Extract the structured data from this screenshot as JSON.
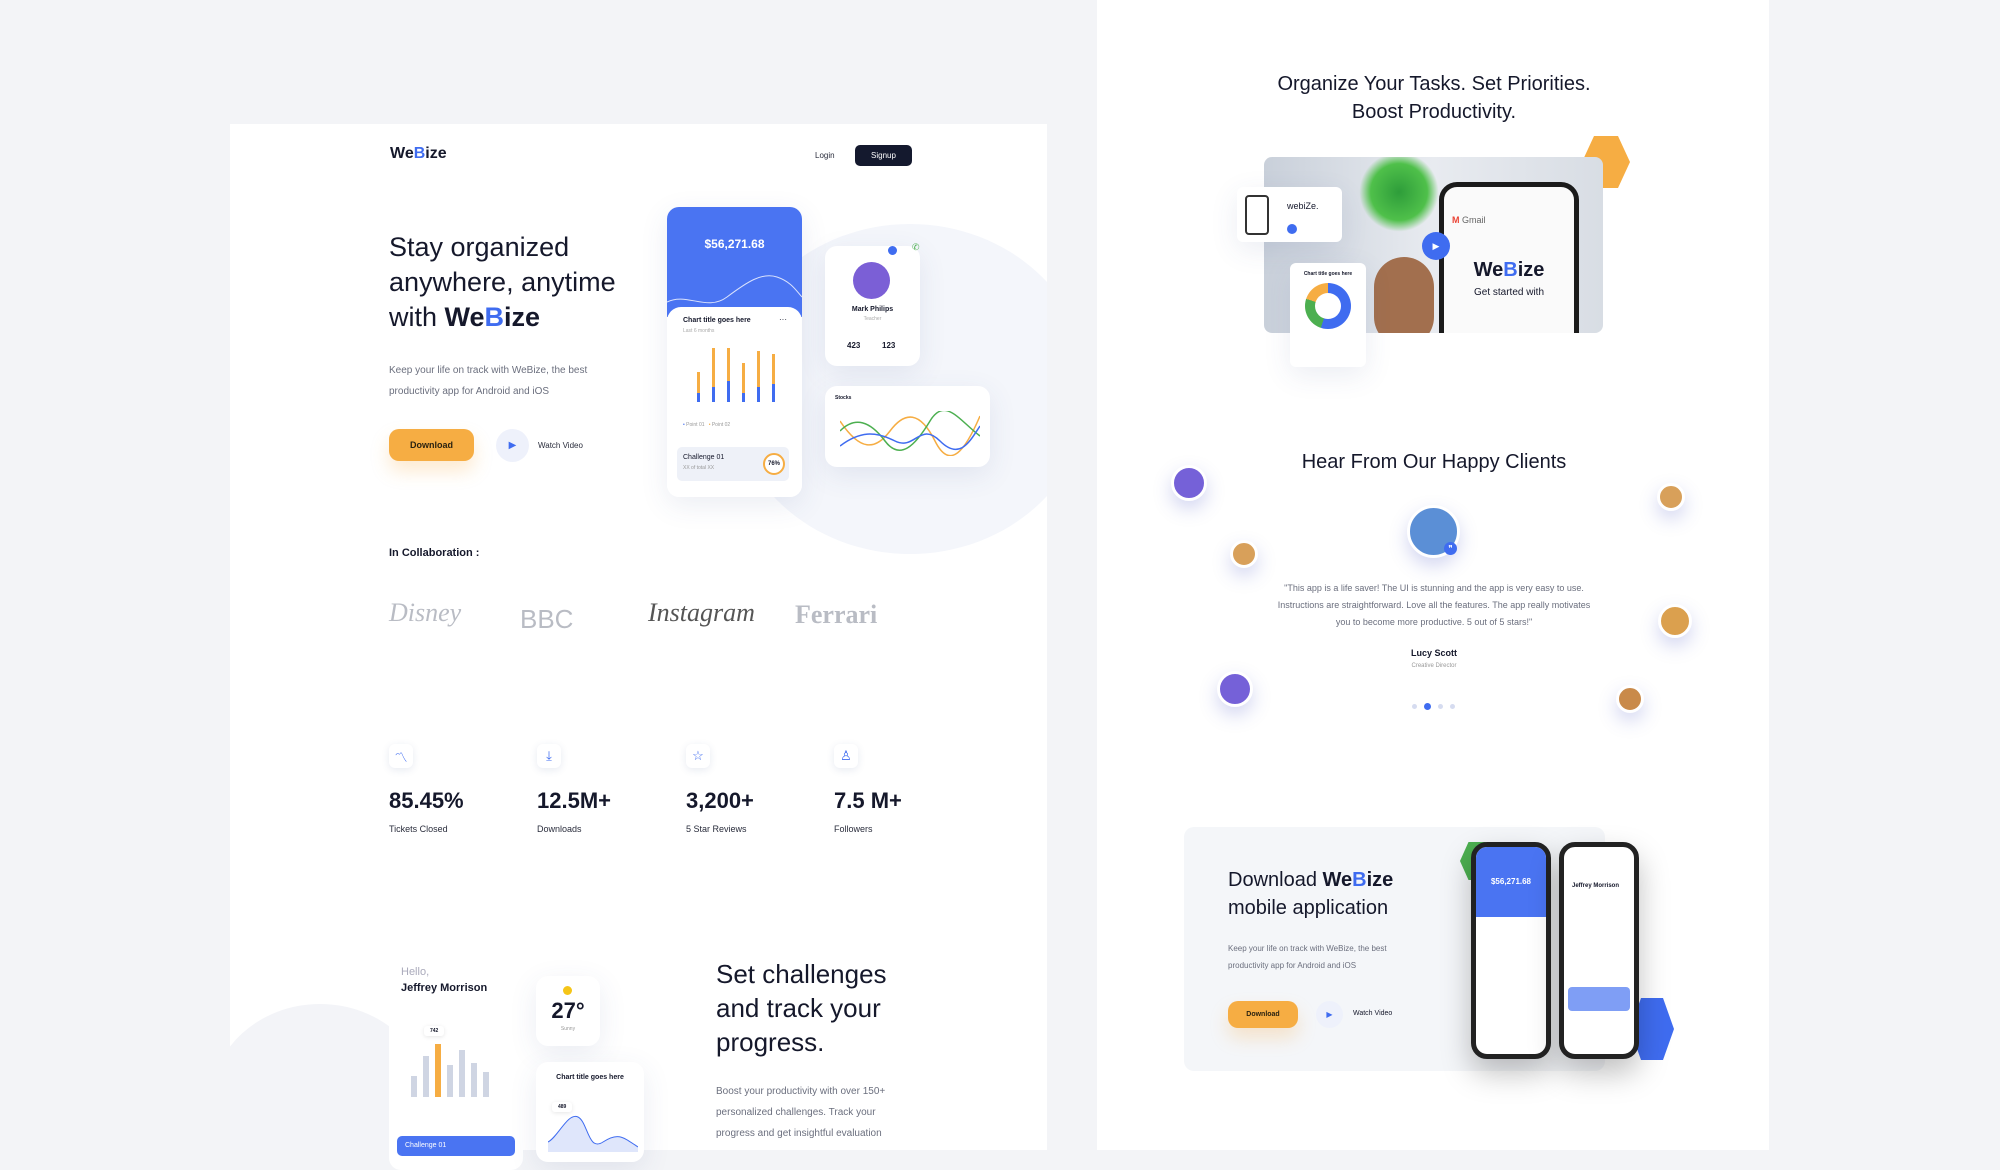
{
  "landing": {
    "logo": {
      "pre": "We",
      "accent": "B",
      "post": "ize"
    },
    "nav": {
      "login": "Login",
      "signup": "Signup"
    },
    "hero": {
      "line1": "Stay organized",
      "line2": "anywhere, anytime",
      "line3_pre": "with ",
      "brand_pre": "We",
      "brand_accent": "B",
      "brand_post": "ize",
      "desc1": "Keep your life on track with WeBize, the best",
      "desc2": "productivity app for Android and iOS",
      "download": "Download",
      "watch": "Watch Video"
    },
    "mockup": {
      "balance": "$56,271.68",
      "chart_title": "Chart title goes here",
      "chart_sub": "Last 6 months",
      "legend": [
        "Point 01",
        "Point 02"
      ],
      "challenge": "Challenge 01",
      "challenge_sub": "XX of total XX",
      "challenge_pct": "76%",
      "challenge_progress": 0.76,
      "profile_name": "Mark Philips",
      "profile_role": "Teacher",
      "profile_stats": [
        "423",
        "123"
      ],
      "stocks": "Stocks"
    },
    "collab": {
      "label": "In Collaboration :",
      "logos": [
        "Disney",
        "BBC",
        "Instagram",
        "Ferrari"
      ]
    },
    "stats": [
      {
        "icon": "trend-icon",
        "value": "85.45%",
        "label": "Tickets Closed"
      },
      {
        "icon": "download-icon",
        "value": "12.5M+",
        "label": "Downloads"
      },
      {
        "icon": "star-icon",
        "value": "3,200+",
        "label": "5 Star Reviews"
      },
      {
        "icon": "user-icon",
        "value": "7.5 M+",
        "label": "Followers"
      }
    ],
    "challenges": {
      "hello": "Hello,",
      "user": "Jeffrey Morrison",
      "bar_badge": "742",
      "temp": "27°",
      "weather": "Sunny",
      "chart_title": "Chart title goes here",
      "chart_badge": "489",
      "challenge_btn": "Challenge 01",
      "title1": "Set challenges",
      "title2": "and track your",
      "title3": "progress.",
      "desc1": "Boost your productivity with over 150+",
      "desc2": "personalized challenges. Track your",
      "desc3": "progress and get insightful evaluation"
    }
  },
  "right": {
    "heading1": "Organize Your Tasks. Set Priorities.",
    "heading2": "Boost Productivity.",
    "promo": {
      "gmail": "Gmail",
      "brand_pre": "We",
      "brand_accent": "B",
      "brand_post": "ize",
      "tagline": "Get started with",
      "card_brand": "webiZe.",
      "donut_title": "Chart title goes here"
    },
    "testimonials": {
      "title": "Hear From Our Happy Clients",
      "quote1": "\"This app is a life saver! The UI is stunning and the app is very easy to use.",
      "quote2": "Instructions are straightforward. Love all the features. The app really motivates",
      "quote3": "you to become more productive. 5 out of 5 stars!\"",
      "name": "Lucy Scott",
      "role": "Creative Director",
      "active_dot": 1,
      "dots": 4
    },
    "download": {
      "title_pre": "Download ",
      "brand_pre": "We",
      "brand_accent": "B",
      "brand_post": "ize",
      "title2": "mobile application",
      "desc1": "Keep your life on track with WeBize, the best",
      "desc2": "productivity app for Android and iOS",
      "download": "Download",
      "watch": "Watch Video",
      "phone_balance": "$56,271.68",
      "phone_user": "Jeffrey Morrison"
    }
  },
  "colors": {
    "accent": "#3f6cf0",
    "orange": "#f6ad43",
    "green": "#4caf50",
    "dark": "#15182b"
  }
}
